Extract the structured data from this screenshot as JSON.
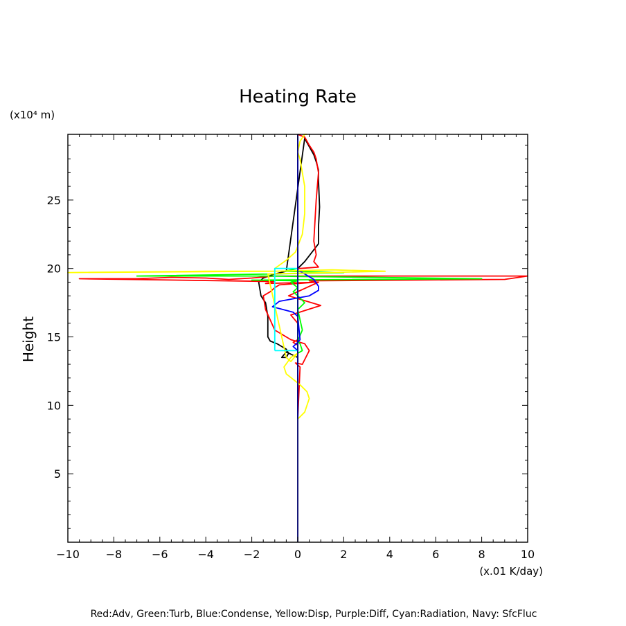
{
  "chart_data": {
    "type": "line",
    "title": "Heating Rate",
    "xlabel": "(x.01 K/day)",
    "ylabel": "Height",
    "y_unit_label": "(x10⁴ m)",
    "legend_text": "Red:Adv, Green:Turb, Blue:Condense, Yellow:Disp, Purple:Diff, Cyan:Radiation, Navy: SfcFluc",
    "xlim": [
      -10,
      10
    ],
    "ylim": [
      0,
      29.8
    ],
    "xticks": [
      -10,
      -8,
      -6,
      -4,
      -2,
      0,
      2,
      4,
      6,
      8,
      10
    ],
    "xtick_labels": [
      "−10",
      "−8",
      "−6",
      "−4",
      "−2",
      "0",
      "2",
      "4",
      "6",
      "8",
      "10"
    ],
    "yticks": [
      5,
      10,
      15,
      20,
      25
    ],
    "ytick_labels": [
      "5",
      "10",
      "15",
      "20",
      "25"
    ],
    "grid": false,
    "series": [
      {
        "color": "#000000",
        "x": [
          0.0,
          0.0,
          0.0,
          0.3,
          0.9,
          0.9,
          0.95,
          0.9,
          0.9,
          0.8,
          0.7,
          0.3,
          -0.5,
          -1.0,
          -1.5,
          -1.7,
          -1.6,
          -1.4,
          -1.3,
          -1.3,
          -1.3,
          -1.2,
          -0.9,
          -0.7,
          -0.5,
          -0.4,
          -0.5,
          -0.7,
          -0.5,
          0.0,
          0.0,
          0.0
        ],
        "y": [
          0.0,
          9.0,
          20.0,
          20.5,
          21.8,
          23.0,
          24.5,
          26.5,
          27.2,
          27.8,
          28.3,
          29.5,
          19.8,
          19.6,
          19.3,
          19.0,
          18.0,
          17.5,
          16.5,
          16.0,
          15.0,
          14.7,
          14.5,
          14.3,
          14.1,
          13.8,
          13.5,
          13.5,
          13.9,
          13.5,
          13.0,
          9.0
        ]
      },
      {
        "color": "#ff0000",
        "x": [
          0.0,
          0.0,
          0.1,
          -0.1,
          0.2,
          0.5,
          0.3,
          -0.3,
          -1.0,
          -1.4,
          -1.5,
          -1.2,
          -1.0,
          -0.8,
          0.8,
          0.5,
          9.0,
          10.0,
          -1.0,
          -2.0,
          -3.0,
          -4.0,
          -5.5,
          -7.0,
          -9.5,
          -1.0,
          -1.4,
          0.9,
          -0.4,
          1.0,
          -0.3,
          0.0,
          0.0,
          -0.2,
          0.0,
          0.0,
          0.1,
          0.9,
          0.7,
          0.8,
          0.7,
          0.8,
          0.9,
          0.8,
          0.7,
          0.5,
          0.3,
          0.0
        ],
        "y": [
          0.0,
          9.0,
          12.8,
          13.1,
          13.0,
          14.0,
          14.5,
          14.8,
          15.5,
          17.0,
          18.0,
          18.3,
          18.6,
          18.8,
          19.0,
          19.1,
          19.2,
          19.45,
          19.45,
          19.3,
          19.2,
          19.3,
          19.35,
          19.25,
          19.25,
          19.05,
          18.9,
          19.0,
          18.0,
          17.3,
          16.6,
          16.0,
          14.8,
          14.6,
          14.4,
          20.0,
          20.0,
          20.1,
          20.5,
          21.0,
          22.0,
          25.0,
          27.0,
          28.0,
          28.5,
          29.0,
          29.6,
          29.8
        ]
      },
      {
        "color": "#00ff00",
        "x": [
          0.0,
          0.0,
          0.2,
          0.1,
          0.0,
          0.2,
          0.0,
          0.3,
          0.0,
          -0.2,
          0.0,
          -0.3,
          0.0,
          -2.0,
          8.0,
          -1.5,
          -7.0,
          -1.0,
          2.0,
          -0.6,
          0.0
        ],
        "y": [
          0.0,
          13.8,
          14.0,
          14.5,
          14.7,
          15.5,
          17.0,
          17.5,
          18.0,
          18.3,
          18.6,
          19.0,
          19.1,
          19.15,
          19.25,
          19.45,
          19.45,
          19.6,
          19.7,
          19.8,
          20.0
        ]
      },
      {
        "color": "#0000ff",
        "x": [
          0.0,
          0.0,
          -0.2,
          0.0,
          0.1,
          0.0,
          -0.2,
          -1.1,
          -0.8,
          0.5,
          0.9,
          0.9,
          0.7,
          0.3,
          0.0,
          0.0,
          0.0
        ],
        "y": [
          0.0,
          14.0,
          14.3,
          14.6,
          14.8,
          16.5,
          16.8,
          17.2,
          17.6,
          18.0,
          18.4,
          18.7,
          19.2,
          19.6,
          19.9,
          20.1,
          29.8
        ]
      },
      {
        "color": "#ffff00",
        "x": [
          0.0,
          0.0,
          0.3,
          0.5,
          0.4,
          0.1,
          -0.5,
          -0.6,
          -0.3,
          0.0,
          -0.3,
          -0.5,
          -1.3,
          3.8,
          1.5,
          -1.0,
          -4.0,
          -10.0,
          -5.0,
          -1.0,
          -1.0,
          -0.5,
          -0.1,
          0.2,
          0.3,
          0.3,
          0.2,
          0.1,
          0.0,
          0.1,
          0.3,
          0.4
        ],
        "y": [
          0.0,
          9.0,
          9.5,
          10.5,
          11.0,
          11.5,
          12.3,
          12.8,
          13.5,
          13.8,
          13.2,
          13.5,
          19.6,
          19.8,
          19.9,
          19.8,
          19.8,
          19.7,
          19.75,
          19.8,
          20.0,
          20.6,
          21.2,
          22.5,
          24.0,
          26.0,
          27.0,
          28.0,
          28.5,
          29.3,
          29.8,
          29.8
        ]
      },
      {
        "color": "#00ffff",
        "x": [
          -1.0,
          -1.0,
          0.0,
          0.0,
          -1.0
        ],
        "y": [
          14.0,
          20.0,
          20.0,
          14.0,
          14.0
        ]
      },
      {
        "color": "#000080",
        "x": [
          0.0,
          0.0
        ],
        "y": [
          0.0,
          29.8
        ]
      }
    ]
  }
}
